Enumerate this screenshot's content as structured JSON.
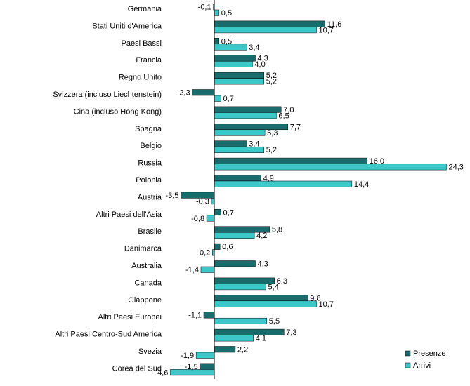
{
  "chart_data": {
    "type": "bar",
    "orientation": "horizontal",
    "categories": [
      "Germania",
      "Stati Uniti d'America",
      "Paesi Bassi",
      "Francia",
      "Regno Unito",
      "Svizzera (incluso Liechtenstein)",
      "Cina (incluso Hong Kong)",
      "Spagna",
      "Belgio",
      "Russia",
      "Polonia",
      "Austria",
      "Altri Paesi dell'Asia",
      "Brasile",
      "Danimarca",
      "Australia",
      "Canada",
      "Giappone",
      "Altri Paesi Europei",
      "Altri Paesi Centro-Sud America",
      "Svezia",
      "Corea del Sud"
    ],
    "series": [
      {
        "name": "Presenze",
        "color": "#1a6b6b",
        "values": [
          -0.1,
          11.6,
          0.5,
          4.3,
          5.2,
          -2.3,
          7.0,
          7.7,
          3.4,
          16.0,
          4.9,
          -3.5,
          0.7,
          5.8,
          0.6,
          4.3,
          6.3,
          9.8,
          -1.1,
          7.3,
          2.2,
          -1.5
        ],
        "labels": [
          "-0,1",
          "11,6",
          "0,5",
          "4,3",
          "5,2",
          "-2,3",
          "7,0",
          "7,7",
          "3,4",
          "16,0",
          "4,9",
          "-3,5",
          "0,7",
          "5,8",
          "0,6",
          "4,3",
          "6,3",
          "9,8",
          "-1,1",
          "7,3",
          "2,2",
          "-1,5"
        ]
      },
      {
        "name": "Arrivi",
        "color": "#3cc8c8",
        "values": [
          0.5,
          10.7,
          3.4,
          4.0,
          5.2,
          0.7,
          6.5,
          5.3,
          5.2,
          24.3,
          14.4,
          -0.3,
          -0.8,
          4.2,
          -0.2,
          -1.4,
          5.4,
          10.7,
          5.5,
          4.1,
          -1.9,
          -4.6
        ],
        "labels": [
          "0,5",
          "10,7",
          "3,4",
          "4,0",
          "5,2",
          "0,7",
          "6,5",
          "5,3",
          "5,2",
          "24,3",
          "14,4",
          "-0,3",
          "-0,8",
          "4,2",
          "-0,2",
          "-1,4",
          "5,4",
          "10,7",
          "5,5",
          "4,1",
          "-1,9",
          "-4,6"
        ]
      }
    ],
    "xlim": [
      -5,
      26
    ],
    "grid": false,
    "legend": "bottom-right"
  }
}
